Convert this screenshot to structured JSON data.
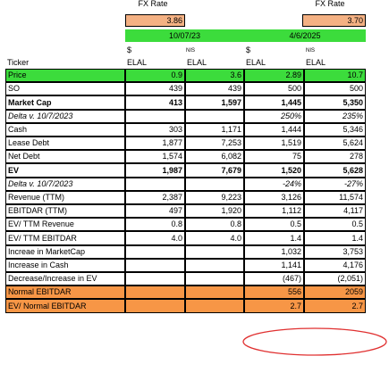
{
  "header": {
    "fx_rate_label_1": "FX Rate",
    "fx_rate_label_2": "FX Rate",
    "fx_rate_value_1": "3.86",
    "fx_rate_value_2": "3.70",
    "date_1": "10/07/23",
    "date_2": "4/6/2025",
    "currency_symbol_1": "$",
    "currency_unit_1": "NIS",
    "currency_symbol_2": "$",
    "currency_unit_2": "NIS",
    "col_ticker": "Ticker",
    "col_elal_1": "ELAL",
    "col_elal_2": "ELAL",
    "col_elal_3": "ELAL",
    "col_elal_4": "ELAL"
  },
  "rows": [
    {
      "label": "Price",
      "v": [
        "0.9",
        "3.6",
        "2.89",
        "10.7"
      ]
    },
    {
      "label": "SO",
      "v": [
        "439",
        "439",
        "500",
        "500"
      ]
    },
    {
      "label": "Market Cap",
      "v": [
        "413",
        "1,597",
        "1,445",
        "5,350"
      ]
    },
    {
      "label": "Delta v. 10/7/2023",
      "v": [
        "",
        "",
        "250%",
        "235%"
      ]
    },
    {
      "label": "Cash",
      "v": [
        "303",
        "1,171",
        "1,444",
        "5,346"
      ]
    },
    {
      "label": "Lease Debt",
      "v": [
        "1,877",
        "7,253",
        "1,519",
        "5,624"
      ]
    },
    {
      "label": "Net Debt",
      "v": [
        "1,574",
        "6,082",
        "75",
        "278"
      ]
    },
    {
      "label": "EV",
      "v": [
        "1,987",
        "7,679",
        "1,520",
        "5,628"
      ]
    },
    {
      "label": "Delta v. 10/7/2023",
      "v": [
        "",
        "",
        "-24%",
        "-27%"
      ]
    },
    {
      "label": "Revenue (TTM)",
      "v": [
        "2,387",
        "9,223",
        "3,126",
        "11,574"
      ]
    },
    {
      "label": "EBITDAR (TTM)",
      "v": [
        "497",
        "1,920",
        "1,112",
        "4,117"
      ]
    },
    {
      "label": "EV/ TTM Revenue",
      "v": [
        "0.8",
        "0.8",
        "0.5",
        "0.5"
      ]
    },
    {
      "label": "EV/ TTM EBITDAR",
      "v": [
        "4.0",
        "4.0",
        "1.4",
        "1.4"
      ]
    },
    {
      "label": "Increae in MarketCap",
      "v": [
        "",
        "",
        "1,032",
        "3,753"
      ]
    },
    {
      "label": "Increase in Cash",
      "v": [
        "",
        "",
        "1,141",
        "4,176"
      ]
    },
    {
      "label": "Decrease/Increase in EV",
      "v": [
        "",
        "",
        "(467)",
        "(2,051)"
      ]
    },
    {
      "label": "Normal EBITDAR",
      "v": [
        "",
        "",
        "556",
        "2059"
      ]
    },
    {
      "label": "EV/ Normal EBITDAR",
      "v": [
        "",
        "",
        "2.7",
        "2.7"
      ]
    }
  ],
  "colors": {
    "fx_rate_fill": "#f4b183",
    "date_fill": "#3cdc3c",
    "price_fill": "#3cdc3c",
    "normal_fill": "#f79646",
    "circle_stroke": "#e03030"
  }
}
